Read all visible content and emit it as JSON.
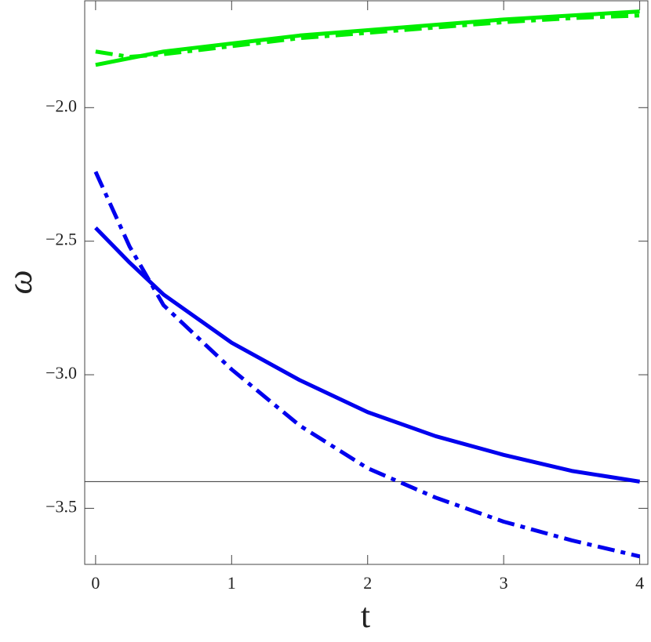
{
  "chart_data": {
    "type": "line",
    "x_label": "t",
    "y_label": "ω",
    "x": [
      0,
      0.25,
      0.5,
      1,
      1.5,
      2,
      2.5,
      3,
      3.5,
      4
    ],
    "series": [
      {
        "color": "#00ee00",
        "dash": "solid",
        "values": [
          -1.84,
          -1.815,
          -1.79,
          -1.76,
          -1.73,
          -1.71,
          -1.69,
          -1.67,
          -1.655,
          -1.64
        ]
      },
      {
        "color": "#00ee00",
        "dash": "dashdot",
        "values": [
          -1.79,
          -1.81,
          -1.8,
          -1.77,
          -1.74,
          -1.72,
          -1.7,
          -1.68,
          -1.665,
          -1.655
        ]
      },
      {
        "color": "#0000ee",
        "dash": "solid",
        "values": [
          -2.45,
          -2.58,
          -2.7,
          -2.88,
          -3.02,
          -3.14,
          -3.23,
          -3.3,
          -3.36,
          -3.4
        ]
      },
      {
        "color": "#0000ee",
        "dash": "dashdot",
        "values": [
          -2.24,
          -2.52,
          -2.74,
          -2.98,
          -3.19,
          -3.35,
          -3.46,
          -3.55,
          -3.62,
          -3.68
        ]
      }
    ],
    "hline": -3.4,
    "xlim": [
      -0.08,
      4.06
    ],
    "ylim": [
      -3.71,
      -1.6
    ],
    "xticks": [
      0,
      1,
      2,
      3,
      4
    ],
    "yticks": [
      {
        "value": -2,
        "label": "−2.0"
      },
      {
        "value": -2.5,
        "label": "−2.5"
      },
      {
        "value": -3,
        "label": "−3.0"
      },
      {
        "value": -3.5,
        "label": "−3.5"
      }
    ]
  }
}
